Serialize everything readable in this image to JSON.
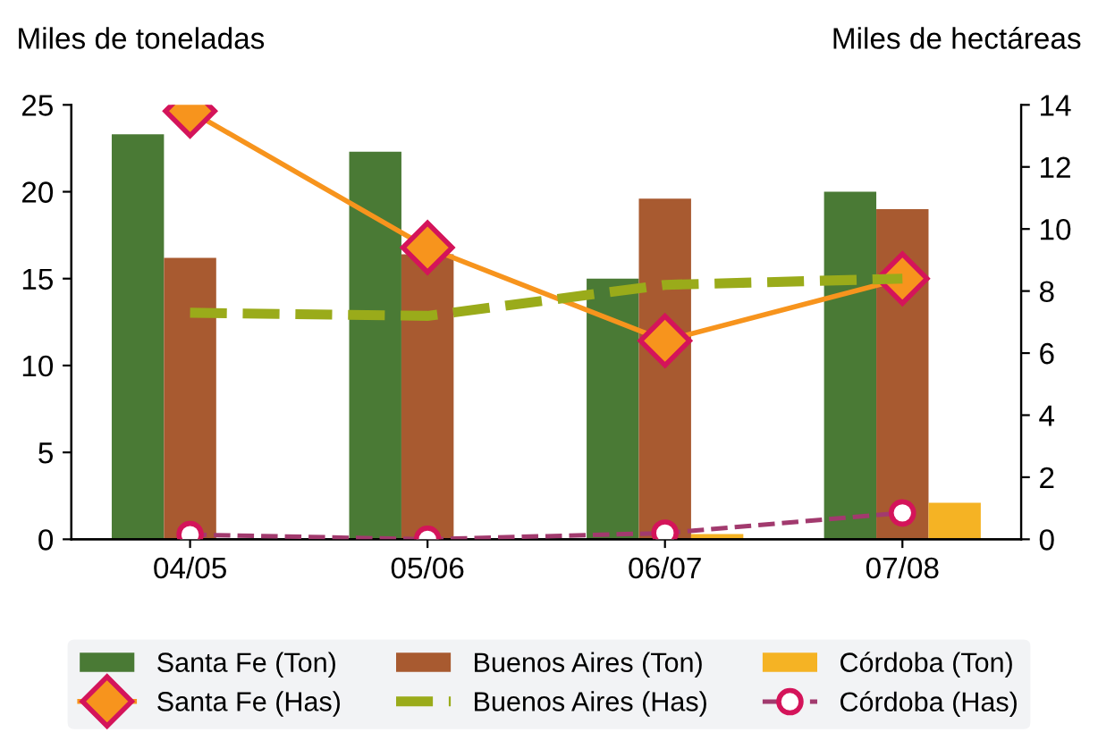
{
  "chart_data": {
    "type": "bar",
    "ylabel": "Miles de toneladas",
    "y2label": "Miles de hectáreas",
    "categories": [
      "04/05",
      "05/06",
      "06/07",
      "07/08"
    ],
    "series": [
      {
        "name": "Santa Fe (Ton)",
        "color": "#4a7a35",
        "values": [
          23.3,
          22.3,
          15.0,
          20.0
        ]
      },
      {
        "name": "Buenos Aires (Ton)",
        "color": "#a85a30",
        "values": [
          16.2,
          16.4,
          19.6,
          19.0
        ]
      },
      {
        "name": "Córdoba (Ton)",
        "color": "#f5b324",
        "values": [
          null,
          null,
          0.3,
          2.1
        ]
      },
      {
        "name": "Santa Fe (Has)",
        "type": "line",
        "axis": "y2",
        "color": "#f7941d",
        "marker": "diamond",
        "line_style": "solid",
        "values": [
          13.8,
          9.4,
          6.4,
          8.4
        ]
      },
      {
        "name": "Buenos Aires (Has)",
        "type": "line",
        "axis": "y2",
        "color": "#9aab1a",
        "marker": "none",
        "line_style": "dashed",
        "values": [
          7.3,
          7.2,
          8.2,
          8.4
        ]
      },
      {
        "name": "Córdoba (Has)",
        "type": "line",
        "axis": "y2",
        "color": "#a23a6e",
        "marker": "circle",
        "line_style": "dashed",
        "values": [
          0.15,
          0.0,
          0.2,
          0.85
        ]
      }
    ],
    "ylim": [
      0,
      25
    ],
    "yticks": [
      0,
      5,
      10,
      15,
      20,
      25
    ],
    "y2lim": [
      0,
      14
    ],
    "y2ticks": [
      0,
      2,
      4,
      6,
      8,
      10,
      12,
      14
    ],
    "grid": false,
    "legend": "bottom"
  }
}
